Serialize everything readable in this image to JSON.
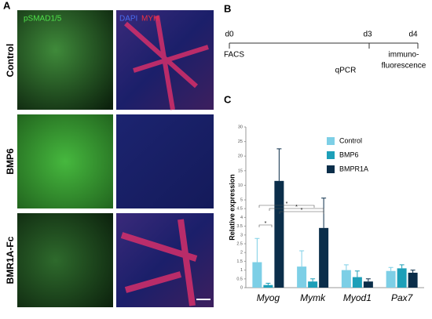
{
  "panels": {
    "a": "A",
    "b": "B",
    "c": "C"
  },
  "panel_a": {
    "rows": [
      "Control",
      "BMP6",
      "BMR1A-Fc"
    ],
    "stain_left": "pSMAD1/5",
    "stain_dapi": "DAPI",
    "stain_myh": "MYH"
  },
  "panel_b": {
    "days": [
      "d0",
      "d3",
      "d4"
    ],
    "events": [
      "FACS",
      "qPCR",
      "immuno-",
      "fluorescence"
    ]
  },
  "chart_data": {
    "type": "bar",
    "y_label": "Relative expression",
    "categories": [
      "Myog",
      "Mymk",
      "Myod1",
      "Pax7"
    ],
    "series": [
      {
        "name": "Control",
        "color": "#7dcfe6",
        "values": [
          1.45,
          1.2,
          1.0,
          0.95
        ],
        "errors": [
          1.35,
          0.9,
          0.3,
          0.2
        ]
      },
      {
        "name": "BMP6",
        "color": "#1d9fb8",
        "values": [
          0.15,
          0.35,
          0.6,
          1.1
        ],
        "errors": [
          0.1,
          0.15,
          0.35,
          0.2
        ]
      },
      {
        "name": "BMPR1A",
        "color": "#0b2e4a",
        "values": [
          11.5,
          3.4,
          0.35,
          0.85
        ],
        "errors": [
          11,
          2.2,
          0.15,
          0.15
        ]
      }
    ],
    "ylim": [
      0,
      30
    ],
    "y_break": 5,
    "yticks": [
      0,
      0.5,
      1,
      1.5,
      2,
      2.5,
      3,
      3.5,
      4,
      4.5,
      5,
      10,
      15,
      20,
      25,
      30
    ],
    "annotations": [
      "*",
      "*",
      "*",
      "*"
    ]
  }
}
